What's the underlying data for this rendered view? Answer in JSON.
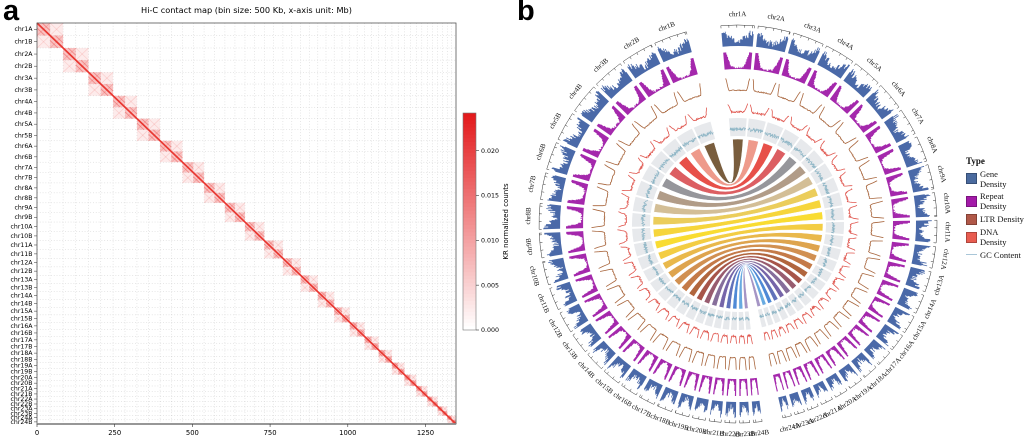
{
  "figure": {
    "panel_a_label": "a",
    "panel_b_label": "b"
  },
  "chart_data": [
    {
      "type": "heatmap",
      "panel": "a",
      "title": "Hi-C contact map (bin size: 500 Kb, x-axis unit: Mb)",
      "bin_size": "500 Kb",
      "x_axis_unit": "Mb",
      "x_ticks": [
        0,
        250,
        500,
        750,
        1000,
        1250
      ],
      "y_categories": [
        "chr1A",
        "chr1B",
        "chr2A",
        "chr2B",
        "chr3A",
        "chr3B",
        "chr4A",
        "chr4B",
        "chr5A",
        "chr5B",
        "chr6A",
        "chr6B",
        "chr7A",
        "chr7B",
        "chr8A",
        "chr8B",
        "chr9A",
        "chr9B",
        "chr10A",
        "chr10B",
        "chr11A",
        "chr11B",
        "chr12A",
        "chr12B",
        "chr13A",
        "chr13B",
        "chr14A",
        "chr14B",
        "chr15A",
        "chr15B",
        "chr16A",
        "chr16B",
        "chr17A",
        "chr17B",
        "chr18A",
        "chr18B",
        "chr19A",
        "chr19B",
        "chr20A",
        "chr20B",
        "chr21A",
        "chr21B",
        "chr22A",
        "chr22B",
        "chr23A",
        "chr23B",
        "chr24A",
        "chr24B"
      ],
      "pair_sizes_mb": [
        42.0,
        40.8,
        39.6,
        38.4,
        37.2,
        36.0,
        34.8,
        33.5,
        32.3,
        31.1,
        29.9,
        28.7,
        27.5,
        26.3,
        25.1,
        23.8,
        22.6,
        21.4,
        20.2,
        19.0,
        17.8,
        16.6,
        15.4,
        14.1
      ],
      "colorbar": {
        "label": "KR normalized counts",
        "tick_labels": [
          "0.000",
          "0.005",
          "0.010",
          "0.015",
          "0.020"
        ],
        "tick_values": [
          0,
          0.005,
          0.01,
          0.015,
          0.02
        ],
        "vmax": 0.0242,
        "low_color": "#ffffff",
        "high_color": "#e31a1c"
      },
      "diagonal_color": "#e8302a",
      "pattern_note": "red intra-chromosomal blocks along diagonal, lighter A/B homeolog pair blocks, dotted grid at chromosome boundaries"
    },
    {
      "type": "circos",
      "panel": "b",
      "chromosomes_right": [
        "chr1A",
        "chr2A",
        "chr3A",
        "chr4A",
        "chr5A",
        "chr6A",
        "chr7A",
        "chr8A",
        "chr9A",
        "chr10A",
        "chr11A",
        "chr12A",
        "chr13A",
        "chr14A",
        "chr15A",
        "chr16A",
        "chr17A",
        "chr18A",
        "chr19A",
        "chr20A",
        "chr21A",
        "chr22A",
        "chr23A",
        "chr24A"
      ],
      "chromosomes_left": [
        "chr1B",
        "chr2B",
        "chr3B",
        "chr4B",
        "chr5B",
        "chr6B",
        "chr7B",
        "chr8B",
        "chr9B",
        "chr10B",
        "chr11B",
        "chr12B",
        "chr13B",
        "chr14B",
        "chr15B",
        "chr16B",
        "chr17B",
        "chr18B",
        "chr19B",
        "chr20B",
        "chr21B",
        "chr22B",
        "chr23B",
        "chr24B"
      ],
      "tracks": [
        {
          "name": "Gene Density",
          "style": "histogram",
          "color": "#4a69a8"
        },
        {
          "name": "Repeat Density",
          "style": "area",
          "color": "#a428ac"
        },
        {
          "name": "LTR Density",
          "style": "line",
          "color": "#a8653c"
        },
        {
          "name": "DNA Density",
          "style": "line",
          "color": "#e05850"
        },
        {
          "name": "GC Content",
          "style": "line",
          "color": "#8fb6c6",
          "block_color": "#e7e9ec"
        }
      ],
      "legend": {
        "title": "Type",
        "entries": [
          {
            "label": "Gene Density",
            "color": "#4a6a9e",
            "swatch": "box"
          },
          {
            "label": "Repeat Density",
            "color": "#a31aa8",
            "swatch": "box"
          },
          {
            "label": "LTR Density",
            "color": "#b05848",
            "swatch": "box"
          },
          {
            "label": "DNA Density",
            "color": "#e85c50",
            "swatch": "box"
          },
          {
            "label": "GC Content",
            "color": "#a9c6d8",
            "swatch": "line"
          }
        ]
      },
      "links": "homeologous chrNA-chrNB ribbons",
      "ribbon_colors": [
        "#6e4f2d",
        "#ed9181",
        "#e5413a",
        "#d95055",
        "#8d8d92",
        "#aa947e",
        "#cfb88d",
        "#e9c94d",
        "#f5d12a",
        "#f9d921",
        "#f2c933",
        "#e7b23c",
        "#db9c3f",
        "#cd8742",
        "#bf6f38",
        "#aa592e",
        "#9f4739",
        "#8f4e63",
        "#7c6292",
        "#6a58a2",
        "#5465b4",
        "#3f7fd3",
        "#5ba3dd",
        "#9d8cc0"
      ]
    }
  ]
}
